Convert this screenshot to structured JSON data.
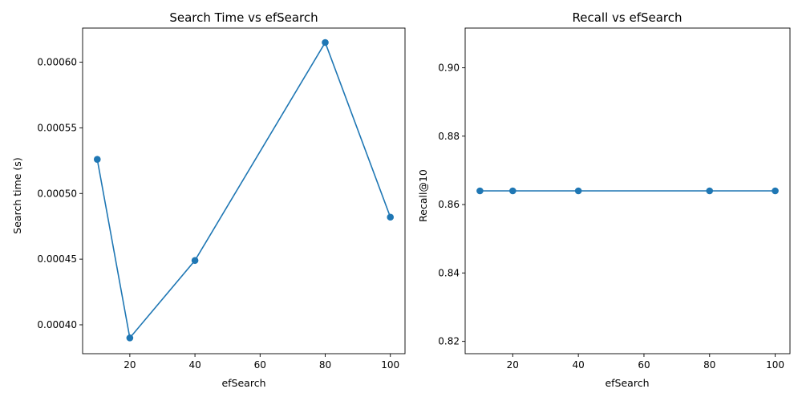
{
  "chart_data": [
    {
      "type": "line",
      "title": "Search Time vs efSearch",
      "xlabel": "efSearch",
      "ylabel": "Search time (s)",
      "xlim": [
        5.5,
        104.5
      ],
      "ylim": [
        0.000378,
        0.000626
      ],
      "xticks": [
        20,
        40,
        60,
        80,
        100
      ],
      "xtick_labels": [
        "20",
        "40",
        "60",
        "80",
        "100"
      ],
      "yticks": [
        0.0004,
        0.00045,
        0.0005,
        0.00055,
        0.0006
      ],
      "ytick_labels": [
        "0.00040",
        "0.00045",
        "0.00050",
        "0.00055",
        "0.00060"
      ],
      "grid": false,
      "series": [
        {
          "color": "#1f77b4",
          "marker": "circle",
          "x": [
            10,
            20,
            40,
            80,
            100
          ],
          "y": [
            0.000526,
            0.00039,
            0.000449,
            0.000615,
            0.000482
          ]
        }
      ]
    },
    {
      "type": "line",
      "title": "Recall vs efSearch",
      "xlabel": "efSearch",
      "ylabel": "Recall@10",
      "xlim": [
        5.5,
        104.5
      ],
      "ylim": [
        0.8164,
        0.9116
      ],
      "xticks": [
        20,
        40,
        60,
        80,
        100
      ],
      "xtick_labels": [
        "20",
        "40",
        "60",
        "80",
        "100"
      ],
      "yticks": [
        0.82,
        0.84,
        0.86,
        0.88,
        0.9
      ],
      "ytick_labels": [
        "0.82",
        "0.84",
        "0.86",
        "0.88",
        "0.90"
      ],
      "grid": false,
      "series": [
        {
          "color": "#1f77b4",
          "marker": "circle",
          "x": [
            10,
            20,
            40,
            80,
            100
          ],
          "y": [
            0.864,
            0.864,
            0.864,
            0.864,
            0.864
          ]
        }
      ]
    }
  ]
}
